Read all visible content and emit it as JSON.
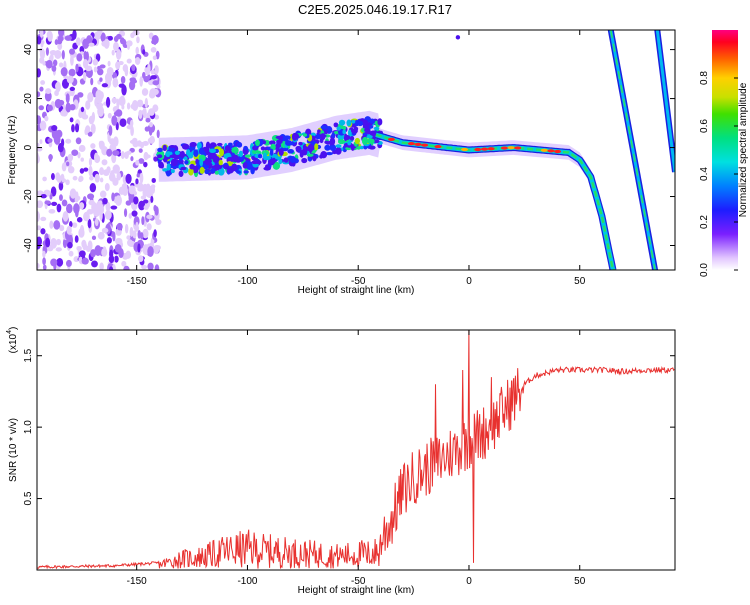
{
  "title": "C2E5.2025.046.19.17.R17",
  "chart_data": [
    {
      "type": "heatmap",
      "title": "C2E5.2025.046.19.17.R17",
      "xlabel": "Height of straight line (km)",
      "ylabel": "Frequency (Hz)",
      "xlim": [
        -195,
        93
      ],
      "ylim": [
        -50,
        48
      ],
      "xticks": [
        -150,
        -100,
        -50,
        0,
        50
      ],
      "yticks": [
        -40,
        -20,
        0,
        20,
        40
      ],
      "colorbar": {
        "label": "Normalized spectral amplitude",
        "range": [
          0,
          1
        ],
        "ticks": [
          0.0,
          0.2,
          0.4,
          0.6,
          0.8
        ]
      },
      "features": [
        {
          "name": "noise region",
          "x_range": [
            -195,
            -140
          ],
          "y_range": [
            -50,
            48
          ]
        },
        {
          "name": "main signal trace",
          "points": [
            [
              -140,
              -5
            ],
            [
              -100,
              -4
            ],
            [
              -80,
              -1
            ],
            [
              -60,
              4
            ],
            [
              -45,
              6
            ],
            [
              -30,
              2
            ],
            [
              0,
              -1
            ],
            [
              20,
              0
            ],
            [
              45,
              -2
            ],
            [
              50,
              -5
            ],
            [
              55,
              -12
            ],
            [
              60,
              -28
            ],
            [
              65,
              -50
            ]
          ]
        },
        {
          "name": "aliased trace 1",
          "points": [
            [
              64,
              48
            ],
            [
              84,
              -50
            ]
          ]
        },
        {
          "name": "aliased trace 2",
          "points": [
            [
              85,
              48
            ],
            [
              93,
              -10
            ]
          ]
        }
      ]
    },
    {
      "type": "line",
      "xlabel": "Height of straight line (km)",
      "ylabel": "SNR (10 * v/v)",
      "yscale_label": "(x10",
      "yscale_exp": "4",
      "xlim": [
        -195,
        93
      ],
      "ylim": [
        0,
        1.68
      ],
      "xticks": [
        -150,
        -100,
        -50,
        0,
        50
      ],
      "yticks": [
        0.5,
        1.0,
        1.5
      ],
      "ytick_labels": [
        "0.5",
        "1.0",
        "1.5"
      ],
      "series": [
        {
          "name": "SNR",
          "color": "#e8312f",
          "envelope": [
            [
              -195,
              0.02
            ],
            [
              -160,
              0.03
            ],
            [
              -140,
              0.05
            ],
            [
              -130,
              0.12
            ],
            [
              -120,
              0.15
            ],
            [
              -110,
              0.22
            ],
            [
              -100,
              0.25
            ],
            [
              -90,
              0.22
            ],
            [
              -80,
              0.2
            ],
            [
              -70,
              0.18
            ],
            [
              -60,
              0.16
            ],
            [
              -50,
              0.18
            ],
            [
              -45,
              0.2
            ],
            [
              -40,
              0.2
            ],
            [
              -35,
              0.35
            ],
            [
              -30,
              0.55
            ],
            [
              -25,
              0.65
            ],
            [
              -20,
              0.7
            ],
            [
              -15,
              0.75
            ],
            [
              -10,
              0.8
            ],
            [
              -5,
              0.85
            ],
            [
              0,
              0.9
            ],
            [
              5,
              0.95
            ],
            [
              10,
              1.0
            ],
            [
              15,
              1.1
            ],
            [
              20,
              1.2
            ],
            [
              25,
              1.3
            ],
            [
              30,
              1.36
            ],
            [
              40,
              1.4
            ],
            [
              50,
              1.4
            ],
            [
              60,
              1.4
            ],
            [
              70,
              1.39
            ],
            [
              80,
              1.4
            ],
            [
              93,
              1.4
            ]
          ],
          "spikes": [
            [
              0,
              1.68
            ],
            [
              2,
              0.05
            ],
            [
              -3,
              1.4
            ],
            [
              -15,
              1.3
            ],
            [
              10,
              1.35
            ],
            [
              -46,
              0.05
            ]
          ]
        }
      ]
    }
  ]
}
